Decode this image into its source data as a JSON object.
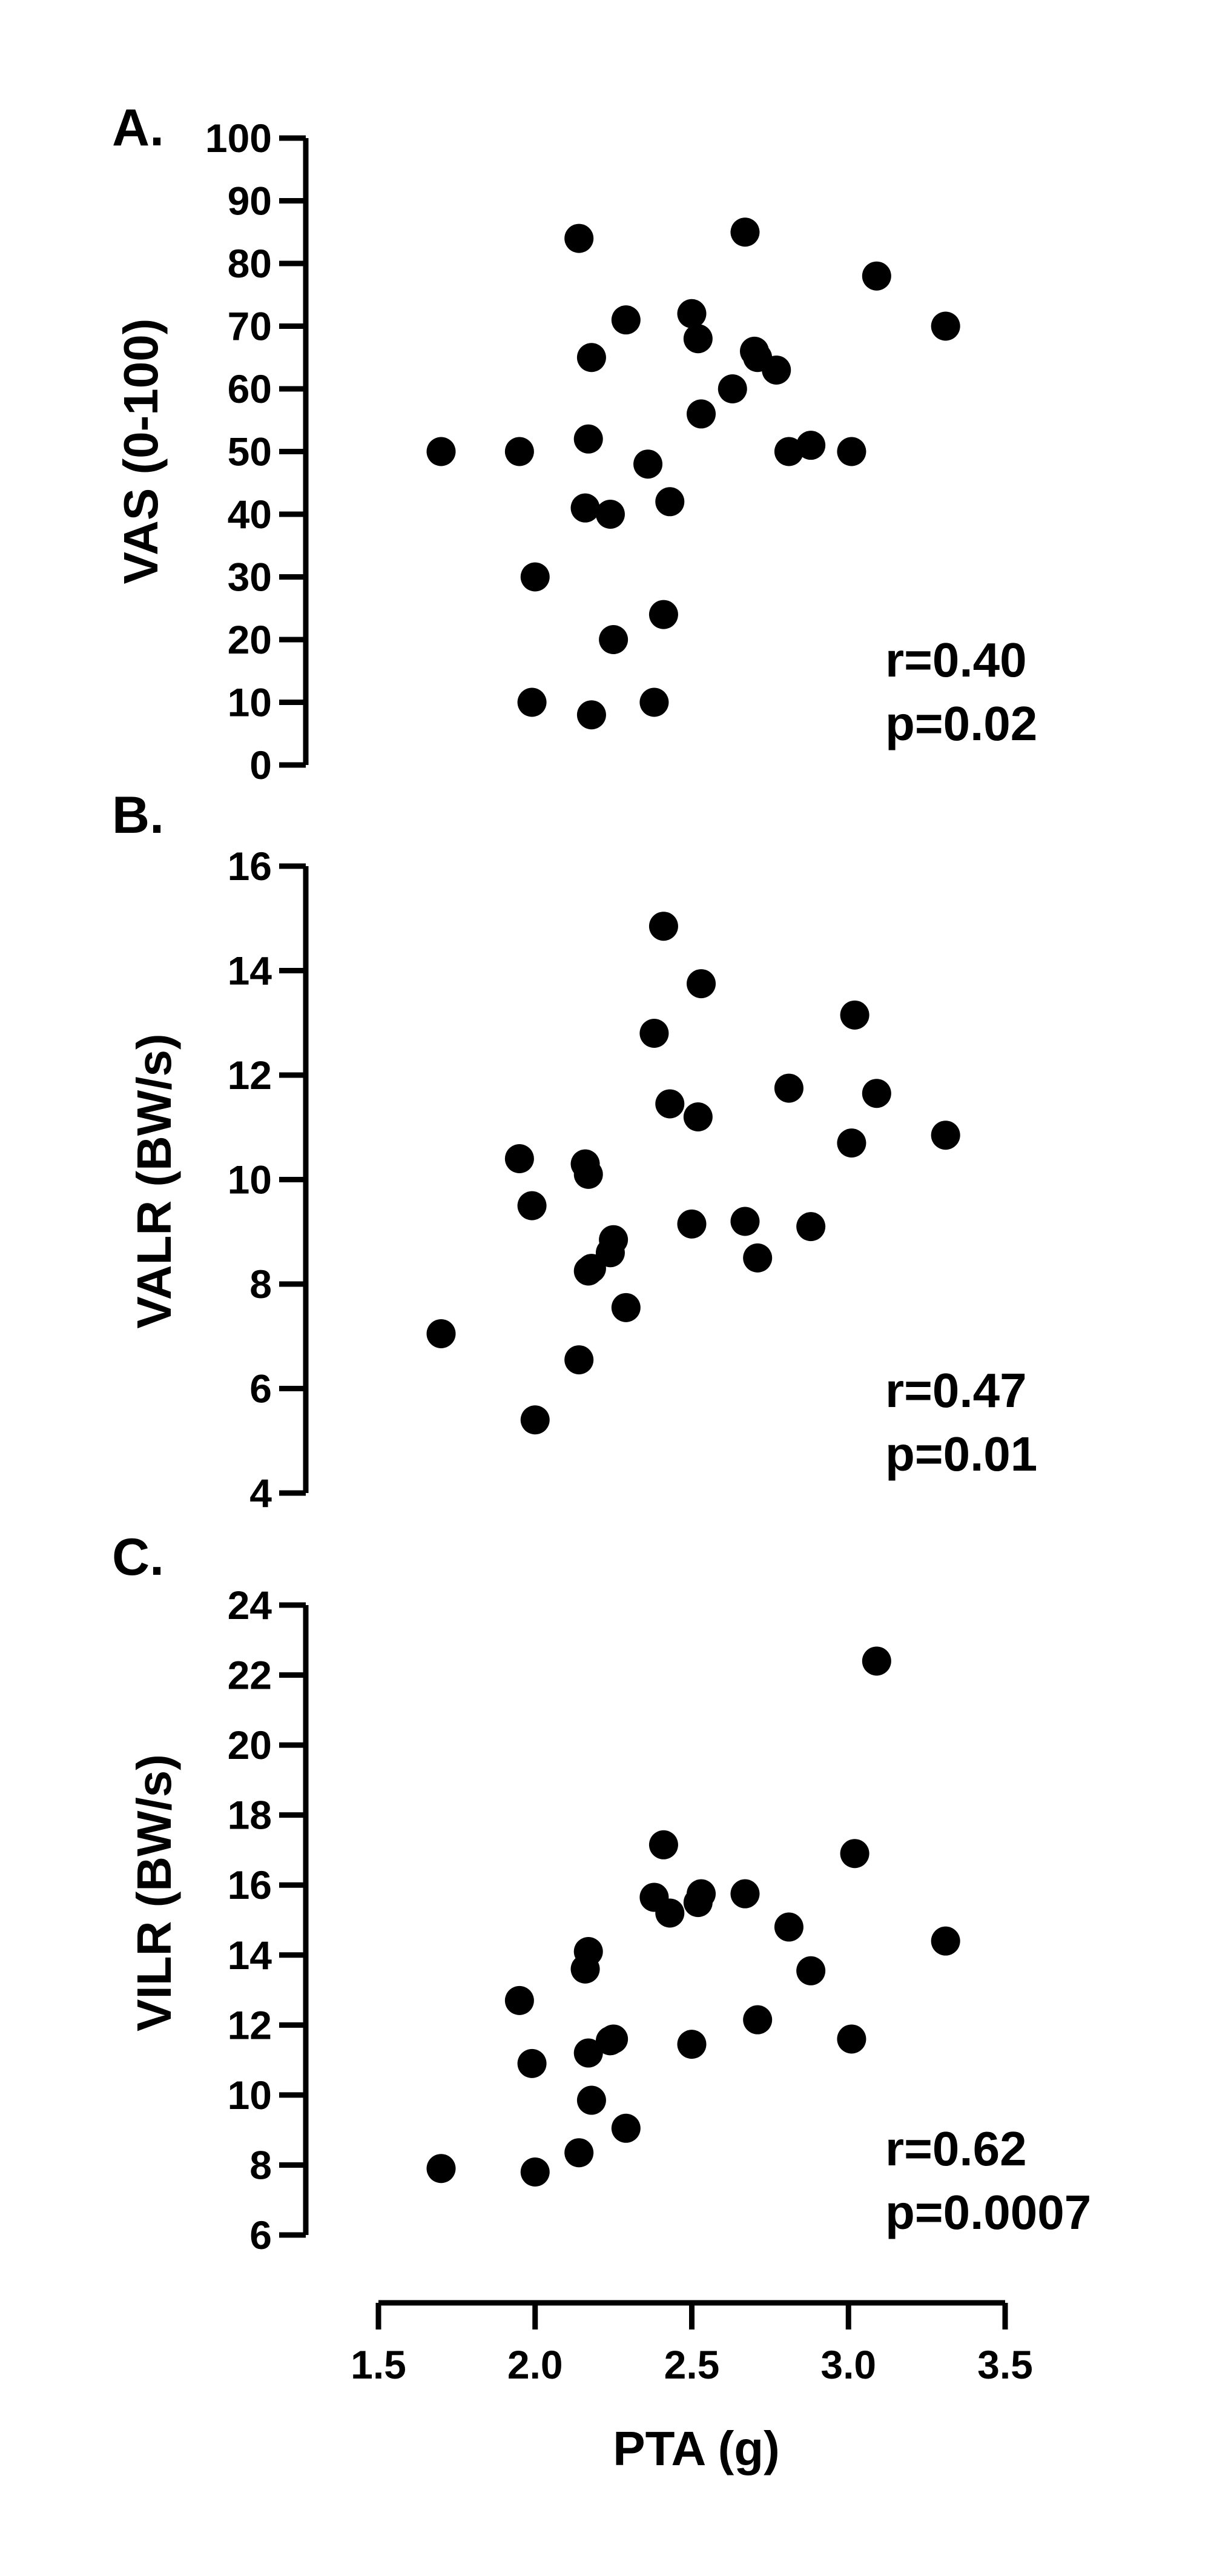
{
  "chart_data": [
    {
      "type": "scatter",
      "panel_label": "A.",
      "ylabel": "VAS (0-100)",
      "ylim": [
        0,
        100
      ],
      "yticks": [
        "0",
        "10",
        "20",
        "30",
        "40",
        "50",
        "60",
        "70",
        "80",
        "90",
        "100"
      ],
      "xlim": [
        1.5,
        3.5
      ],
      "stat": {
        "r": "r=0.40",
        "p": "p=0.02"
      },
      "points": [
        {
          "x": 1.7,
          "y": 50
        },
        {
          "x": 1.95,
          "y": 50
        },
        {
          "x": 1.99,
          "y": 10
        },
        {
          "x": 2.0,
          "y": 30
        },
        {
          "x": 2.14,
          "y": 84
        },
        {
          "x": 2.16,
          "y": 41
        },
        {
          "x": 2.17,
          "y": 52
        },
        {
          "x": 2.18,
          "y": 65
        },
        {
          "x": 2.18,
          "y": 8
        },
        {
          "x": 2.24,
          "y": 40
        },
        {
          "x": 2.25,
          "y": 20
        },
        {
          "x": 2.29,
          "y": 71
        },
        {
          "x": 2.36,
          "y": 48
        },
        {
          "x": 2.38,
          "y": 10
        },
        {
          "x": 2.41,
          "y": 24
        },
        {
          "x": 2.43,
          "y": 42
        },
        {
          "x": 2.5,
          "y": 72
        },
        {
          "x": 2.52,
          "y": 68
        },
        {
          "x": 2.53,
          "y": 56
        },
        {
          "x": 2.63,
          "y": 60
        },
        {
          "x": 2.67,
          "y": 85
        },
        {
          "x": 2.7,
          "y": 66
        },
        {
          "x": 2.71,
          "y": 65
        },
        {
          "x": 2.77,
          "y": 63
        },
        {
          "x": 2.81,
          "y": 50
        },
        {
          "x": 2.88,
          "y": 51
        },
        {
          "x": 3.01,
          "y": 50
        },
        {
          "x": 3.09,
          "y": 78
        },
        {
          "x": 3.31,
          "y": 70
        }
      ]
    },
    {
      "type": "scatter",
      "panel_label": "B.",
      "ylabel": "VALR (BW/s)",
      "ylim": [
        4,
        16
      ],
      "yticks": [
        "4",
        "6",
        "8",
        "10",
        "12",
        "14",
        "16"
      ],
      "xlim": [
        1.5,
        3.5
      ],
      "stat": {
        "r": "r=0.47",
        "p": "p=0.01"
      },
      "points": [
        {
          "x": 1.7,
          "y": 7.05
        },
        {
          "x": 1.95,
          "y": 10.4
        },
        {
          "x": 1.99,
          "y": 9.5
        },
        {
          "x": 2.0,
          "y": 5.4
        },
        {
          "x": 2.14,
          "y": 6.55
        },
        {
          "x": 2.16,
          "y": 10.3
        },
        {
          "x": 2.17,
          "y": 10.1
        },
        {
          "x": 2.17,
          "y": 8.25
        },
        {
          "x": 2.18,
          "y": 8.3
        },
        {
          "x": 2.24,
          "y": 8.6
        },
        {
          "x": 2.25,
          "y": 8.85
        },
        {
          "x": 2.29,
          "y": 7.55
        },
        {
          "x": 2.38,
          "y": 12.8
        },
        {
          "x": 2.41,
          "y": 14.85
        },
        {
          "x": 2.43,
          "y": 11.45
        },
        {
          "x": 2.5,
          "y": 9.15
        },
        {
          "x": 2.52,
          "y": 11.2
        },
        {
          "x": 2.53,
          "y": 13.75
        },
        {
          "x": 2.67,
          "y": 9.2
        },
        {
          "x": 2.71,
          "y": 8.5
        },
        {
          "x": 2.81,
          "y": 11.75
        },
        {
          "x": 2.88,
          "y": 9.1
        },
        {
          "x": 3.01,
          "y": 10.7
        },
        {
          "x": 3.02,
          "y": 13.15
        },
        {
          "x": 3.09,
          "y": 11.65
        },
        {
          "x": 3.31,
          "y": 10.85
        }
      ]
    },
    {
      "type": "scatter",
      "panel_label": "C.",
      "ylabel": "VILR (BW/s)",
      "ylim": [
        6,
        24
      ],
      "yticks": [
        "6",
        "8",
        "10",
        "12",
        "14",
        "16",
        "18",
        "20",
        "22",
        "24"
      ],
      "xlim": [
        1.5,
        3.5
      ],
      "xticks": [
        "1.5",
        "2.0",
        "2.5",
        "3.0",
        "3.5"
      ],
      "xlabel": "PTA (g)",
      "stat": {
        "r": "r=0.62",
        "p": "p=0.0007"
      },
      "points": [
        {
          "x": 1.7,
          "y": 7.9
        },
        {
          "x": 1.95,
          "y": 12.7
        },
        {
          "x": 1.99,
          "y": 10.9
        },
        {
          "x": 2.0,
          "y": 7.8
        },
        {
          "x": 2.14,
          "y": 8.35
        },
        {
          "x": 2.16,
          "y": 13.6
        },
        {
          "x": 2.17,
          "y": 14.1
        },
        {
          "x": 2.17,
          "y": 11.2
        },
        {
          "x": 2.18,
          "y": 9.85
        },
        {
          "x": 2.24,
          "y": 11.55
        },
        {
          "x": 2.25,
          "y": 11.6
        },
        {
          "x": 2.29,
          "y": 9.05
        },
        {
          "x": 2.38,
          "y": 15.65
        },
        {
          "x": 2.41,
          "y": 17.15
        },
        {
          "x": 2.43,
          "y": 15.2
        },
        {
          "x": 2.5,
          "y": 11.45
        },
        {
          "x": 2.52,
          "y": 15.5
        },
        {
          "x": 2.53,
          "y": 15.75
        },
        {
          "x": 2.67,
          "y": 15.75
        },
        {
          "x": 2.71,
          "y": 12.15
        },
        {
          "x": 2.81,
          "y": 14.8
        },
        {
          "x": 2.88,
          "y": 13.55
        },
        {
          "x": 3.01,
          "y": 11.6
        },
        {
          "x": 3.02,
          "y": 16.9
        },
        {
          "x": 3.09,
          "y": 22.4
        },
        {
          "x": 3.31,
          "y": 14.4
        }
      ]
    }
  ]
}
